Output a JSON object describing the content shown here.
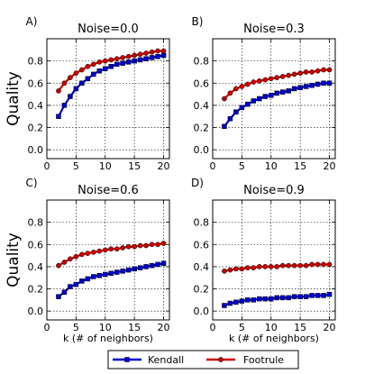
{
  "figure": {
    "legend": [
      {
        "name": "Kendall",
        "color": "#0000cc",
        "marker": "square"
      },
      {
        "name": "Footrule",
        "color": "#cc0000",
        "marker": "circle"
      }
    ]
  },
  "chart_data": [
    {
      "type": "line",
      "panel_label": "A)",
      "title": "Noise=0.0",
      "xlabel": "",
      "ylabel": "Quality",
      "xlim": [
        0,
        21
      ],
      "ylim": [
        -0.08,
        1.0
      ],
      "xticks": [
        0,
        5,
        10,
        15,
        20
      ],
      "yticks": [
        0.0,
        0.2,
        0.4,
        0.6,
        0.8
      ],
      "xtick_labels": [
        "0",
        "5",
        "10",
        "15",
        "20"
      ],
      "ytick_labels": [
        "0.0",
        "0.2",
        "0.4",
        "0.6",
        "0.8"
      ],
      "grid": true,
      "x": [
        2,
        3,
        4,
        5,
        6,
        7,
        8,
        9,
        10,
        11,
        12,
        13,
        14,
        15,
        16,
        17,
        18,
        19,
        20
      ],
      "series": [
        {
          "name": "Kendall",
          "color": "#0000cc",
          "marker": "square",
          "values": [
            0.3,
            0.4,
            0.48,
            0.55,
            0.6,
            0.64,
            0.68,
            0.71,
            0.73,
            0.75,
            0.77,
            0.78,
            0.79,
            0.8,
            0.81,
            0.82,
            0.83,
            0.84,
            0.85
          ]
        },
        {
          "name": "Footrule",
          "color": "#cc0000",
          "marker": "circle",
          "values": [
            0.53,
            0.6,
            0.65,
            0.69,
            0.72,
            0.75,
            0.77,
            0.79,
            0.8,
            0.81,
            0.82,
            0.83,
            0.84,
            0.85,
            0.86,
            0.87,
            0.88,
            0.89,
            0.89
          ]
        }
      ]
    },
    {
      "type": "line",
      "panel_label": "B)",
      "title": "Noise=0.3",
      "xlabel": "",
      "ylabel": "",
      "xlim": [
        0,
        21
      ],
      "ylim": [
        -0.08,
        1.0
      ],
      "xticks": [
        0,
        5,
        10,
        15,
        20
      ],
      "yticks": [
        0.0,
        0.2,
        0.4,
        0.6,
        0.8
      ],
      "xtick_labels": [
        "0",
        "5",
        "10",
        "15",
        "20"
      ],
      "ytick_labels": [
        "0.0",
        "0.2",
        "0.4",
        "0.6",
        "0.8"
      ],
      "grid": true,
      "x": [
        2,
        3,
        4,
        5,
        6,
        7,
        8,
        9,
        10,
        11,
        12,
        13,
        14,
        15,
        16,
        17,
        18,
        19,
        20
      ],
      "series": [
        {
          "name": "Kendall",
          "color": "#0000cc",
          "marker": "square",
          "values": [
            0.21,
            0.28,
            0.34,
            0.38,
            0.41,
            0.44,
            0.46,
            0.48,
            0.49,
            0.51,
            0.52,
            0.53,
            0.55,
            0.56,
            0.57,
            0.58,
            0.59,
            0.6,
            0.6
          ]
        },
        {
          "name": "Footrule",
          "color": "#cc0000",
          "marker": "circle",
          "values": [
            0.46,
            0.51,
            0.55,
            0.57,
            0.59,
            0.61,
            0.62,
            0.63,
            0.64,
            0.65,
            0.66,
            0.67,
            0.68,
            0.69,
            0.7,
            0.7,
            0.71,
            0.72,
            0.72
          ]
        }
      ]
    },
    {
      "type": "line",
      "panel_label": "C)",
      "title": "Noise=0.6",
      "xlabel": "k (# of neighbors)",
      "ylabel": "Quality",
      "xlim": [
        0,
        21
      ],
      "ylim": [
        -0.08,
        1.0
      ],
      "xticks": [
        0,
        5,
        10,
        15,
        20
      ],
      "yticks": [
        0.0,
        0.2,
        0.4,
        0.6,
        0.8
      ],
      "xtick_labels": [
        "0",
        "5",
        "10",
        "15",
        "20"
      ],
      "ytick_labels": [
        "0.0",
        "0.2",
        "0.4",
        "0.6",
        "0.8"
      ],
      "grid": true,
      "x": [
        2,
        3,
        4,
        5,
        6,
        7,
        8,
        9,
        10,
        11,
        12,
        13,
        14,
        15,
        16,
        17,
        18,
        19,
        20
      ],
      "series": [
        {
          "name": "Kendall",
          "color": "#0000cc",
          "marker": "square",
          "values": [
            0.13,
            0.17,
            0.22,
            0.24,
            0.27,
            0.29,
            0.31,
            0.32,
            0.33,
            0.34,
            0.35,
            0.36,
            0.37,
            0.38,
            0.39,
            0.4,
            0.41,
            0.42,
            0.43
          ]
        },
        {
          "name": "Footrule",
          "color": "#cc0000",
          "marker": "circle",
          "values": [
            0.41,
            0.44,
            0.47,
            0.49,
            0.51,
            0.52,
            0.53,
            0.54,
            0.55,
            0.56,
            0.56,
            0.57,
            0.58,
            0.58,
            0.59,
            0.59,
            0.6,
            0.6,
            0.61
          ]
        }
      ]
    },
    {
      "type": "line",
      "panel_label": "D)",
      "title": "Noise=0.9",
      "xlabel": "k (# of neighbors)",
      "ylabel": "",
      "xlim": [
        0,
        21
      ],
      "ylim": [
        -0.08,
        1.0
      ],
      "xticks": [
        0,
        5,
        10,
        15,
        20
      ],
      "yticks": [
        0.0,
        0.2,
        0.4,
        0.6,
        0.8
      ],
      "xtick_labels": [
        "0",
        "5",
        "10",
        "15",
        "20"
      ],
      "ytick_labels": [
        "0.0",
        "0.2",
        "0.4",
        "0.6",
        "0.8"
      ],
      "grid": true,
      "x": [
        2,
        3,
        4,
        5,
        6,
        7,
        8,
        9,
        10,
        11,
        12,
        13,
        14,
        15,
        16,
        17,
        18,
        19,
        20
      ],
      "series": [
        {
          "name": "Kendall",
          "color": "#0000cc",
          "marker": "square",
          "values": [
            0.05,
            0.07,
            0.08,
            0.09,
            0.1,
            0.1,
            0.11,
            0.11,
            0.11,
            0.12,
            0.12,
            0.12,
            0.13,
            0.13,
            0.13,
            0.14,
            0.14,
            0.14,
            0.15
          ]
        },
        {
          "name": "Footrule",
          "color": "#cc0000",
          "marker": "circle",
          "values": [
            0.36,
            0.37,
            0.38,
            0.38,
            0.39,
            0.39,
            0.4,
            0.4,
            0.4,
            0.4,
            0.41,
            0.41,
            0.41,
            0.41,
            0.41,
            0.42,
            0.42,
            0.42,
            0.42
          ]
        }
      ]
    }
  ]
}
